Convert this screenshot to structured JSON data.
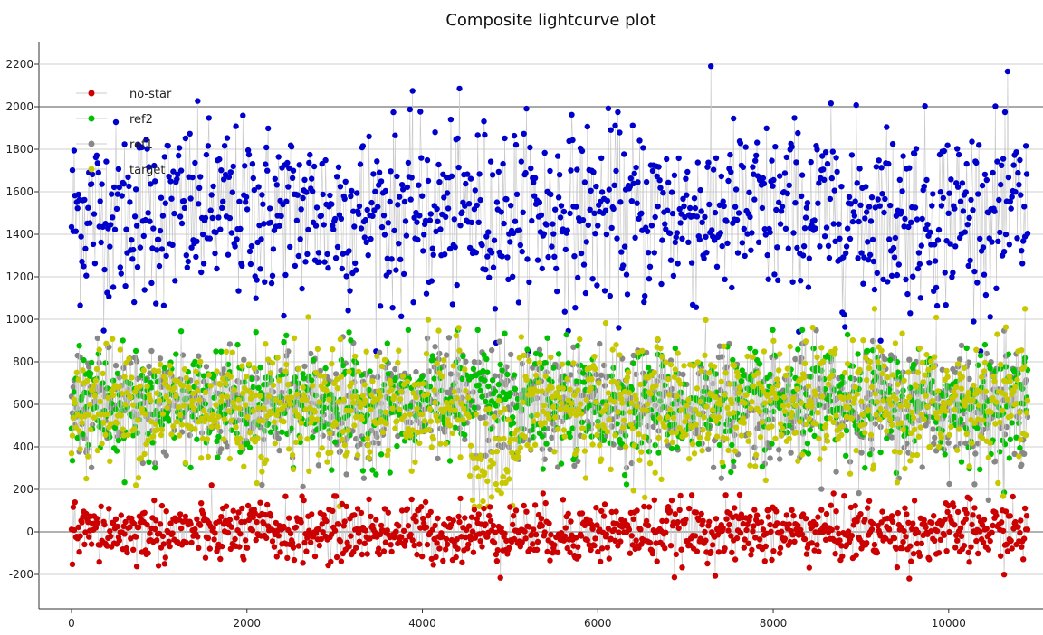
{
  "chart_data": {
    "type": "scatter",
    "title": "Composite lightcurve plot",
    "xlabel": "",
    "ylabel": "",
    "xlim": [
      -500,
      11000
    ],
    "ylim": [
      -350,
      2300
    ],
    "x_ticks": [
      0,
      2000,
      4000,
      6000,
      8000,
      10000
    ],
    "y_ticks": [
      -200,
      0,
      200,
      400,
      600,
      800,
      1000,
      1200,
      1400,
      1600,
      1800,
      2000,
      2200
    ],
    "grid": "horizontal",
    "legend_position": "top-left",
    "connected_points": true,
    "point_count_per_series": 10900,
    "series": [
      {
        "name": "no-star",
        "color": "#cc0000",
        "mean": 0,
        "spread": [
          -230,
          220
        ],
        "segments": [
          {
            "x": [
              0,
              10900
            ],
            "level": 0
          }
        ]
      },
      {
        "name": "ref2",
        "color": "#00c000",
        "mean": 600,
        "spread": [
          150,
          950
        ],
        "segments": [
          {
            "x": [
              0,
              4550
            ],
            "level": 600
          },
          {
            "x": [
              4550,
              5100
            ],
            "level": 650
          },
          {
            "x": [
              5100,
              10900
            ],
            "level": 600
          }
        ]
      },
      {
        "name": "ref1",
        "color": "#888888",
        "mean": 600,
        "spread": [
          150,
          1000
        ],
        "segments": [
          {
            "x": [
              0,
              10900
            ],
            "level": 600
          }
        ]
      },
      {
        "name": "target",
        "color": "#c8c800",
        "mean": 600,
        "spread": [
          120,
          1050
        ],
        "segments": [
          {
            "x": [
              0,
              4550
            ],
            "level": 600
          },
          {
            "x": [
              4550,
              5100
            ],
            "level": 350
          },
          {
            "x": [
              5100,
              10900
            ],
            "level": 600
          }
        ]
      },
      {
        "name": "",
        "color": "#0000cc",
        "mean": 1500,
        "spread": [
          850,
          2200
        ],
        "segments": [
          {
            "x": [
              0,
              10900
            ],
            "level": 1500
          }
        ]
      }
    ]
  }
}
